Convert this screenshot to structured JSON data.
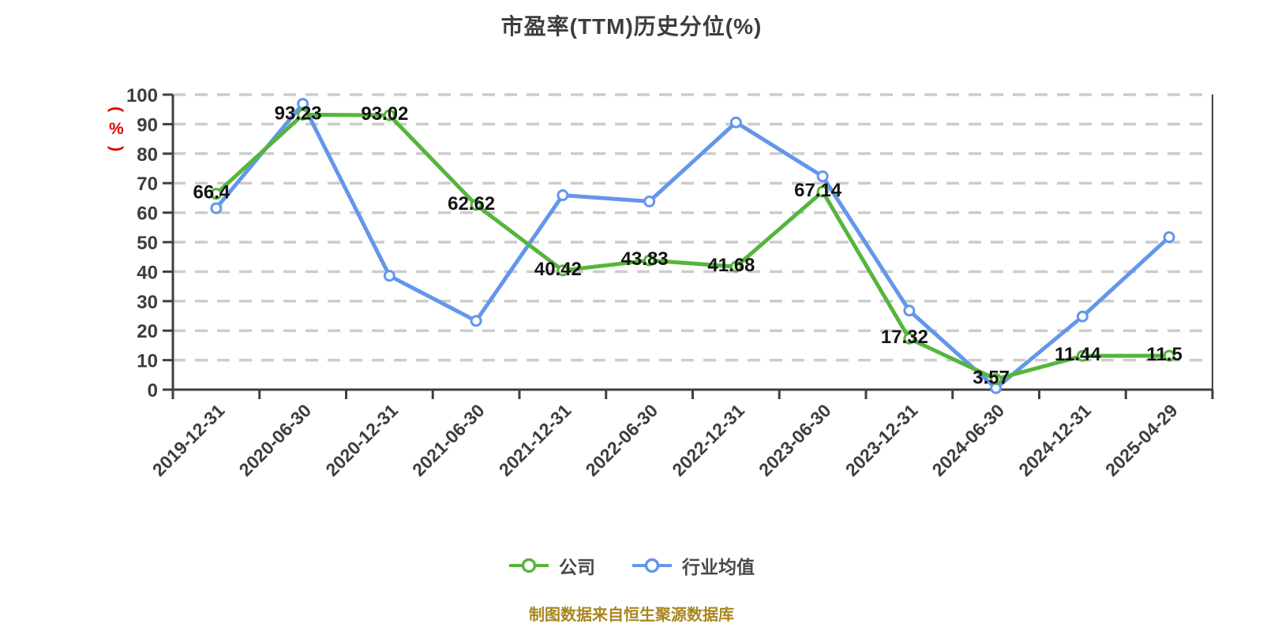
{
  "title": "市盈率(TTM)历史分位(%)",
  "footer": "制图数据来自恒生聚源数据库",
  "legend": [
    {
      "label": "公司",
      "color": "#56b53c"
    },
    {
      "label": "行业均值",
      "color": "#6396ec"
    }
  ],
  "colors": {
    "company_green": "#56b53c",
    "industry_blue": "#6396ec",
    "axis": "#3f3f3f",
    "gridline": "#cccccc",
    "data_label": "#141414",
    "title_text": "#3d3d3d",
    "y_axis_name_red": "#e00000",
    "footer_gold": "#a8861f"
  },
  "chart_data": {
    "type": "line",
    "title": "市盈率(TTM)历史分位(%)",
    "xlabel": "",
    "ylabel": "(%)",
    "ylim": [
      0,
      100
    ],
    "y_ticks": [
      0,
      10,
      20,
      30,
      40,
      50,
      60,
      70,
      80,
      90,
      100
    ],
    "grid": "horizontal-dashed",
    "legend_position": "bottom",
    "categories": [
      "2019-12-31",
      "2020-06-30",
      "2020-12-31",
      "2021-06-30",
      "2021-12-31",
      "2022-06-30",
      "2022-12-31",
      "2023-06-30",
      "2023-12-31",
      "2024-06-30",
      "2024-12-31",
      "2025-04-29"
    ],
    "series": [
      {
        "name": "行业均值",
        "color": "#6396ec",
        "values": [
          61.5,
          96.9,
          38.6,
          23.3,
          65.9,
          63.8,
          90.6,
          72.3,
          26.8,
          0.5,
          24.8,
          51.7
        ],
        "values_estimated": true,
        "labels": null
      },
      {
        "name": "公司",
        "color": "#56b53c",
        "values": [
          66.4,
          93.23,
          93.02,
          62.62,
          40.42,
          43.83,
          41.68,
          67.14,
          17.32,
          3.57,
          11.44,
          11.5
        ],
        "labels": [
          "66.4",
          "93.23",
          "93.02",
          "62.62",
          "40.42",
          "43.83",
          "41.68",
          "67.14",
          "17.32",
          "3.57",
          "11.44",
          "11.5"
        ]
      }
    ]
  }
}
